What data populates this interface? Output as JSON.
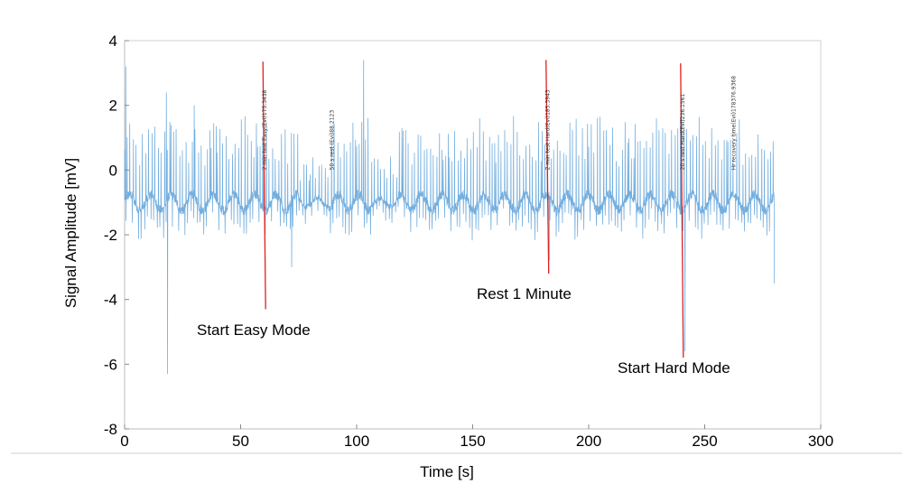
{
  "chart_data": {
    "type": "line",
    "title": "",
    "xlabel": "Time [s]",
    "ylabel": "Signal Amplitude [mV]",
    "xlim": [
      0,
      300
    ],
    "ylim": [
      -8,
      4
    ],
    "xticks": [
      0,
      50,
      100,
      150,
      200,
      250,
      300
    ],
    "yticks": [
      -8,
      -6,
      -4,
      -2,
      0,
      2,
      4
    ],
    "grid": false,
    "series": [
      {
        "name": "",
        "color": "#5aa0d8",
        "description_values": {
          "duration_s": 280,
          "baseline_mV": -1.0,
          "typical_peak_mV": 1.0,
          "min_mV": -6.4,
          "max_mV": 3.4
        },
        "notable_points": [
          {
            "x": 0.5,
            "y": 3.2
          },
          {
            "x": 18,
            "y": 2.4
          },
          {
            "x": 18.5,
            "y": -6.3
          },
          {
            "x": 30,
            "y": 2.0
          },
          {
            "x": 72,
            "y": -3.0
          },
          {
            "x": 103,
            "y": 3.4
          },
          {
            "x": 183,
            "y": -2.8
          },
          {
            "x": 241.5,
            "y": -5.6
          },
          {
            "x": 280,
            "y": -3.5
          }
        ]
      }
    ],
    "event_markers": [
      {
        "x": 60,
        "y_top": 3.35,
        "y_bottom": -4.3,
        "label": "Start Easy Mode",
        "color": "#e0201f"
      },
      {
        "x": 182,
        "y_top": 3.4,
        "y_bottom": -3.2,
        "label": "Rest 1 Minute",
        "color": "#e0201f"
      },
      {
        "x": 240,
        "y_top": 3.3,
        "y_bottom": -5.8,
        "label": "Start Hard Mode",
        "color": "#e0201f"
      }
    ],
    "vertical_text_markers": [
      {
        "x": 60,
        "text": "2 min test Easy(Evi)175.3438"
      },
      {
        "x": 89,
        "text": "50 s rest (Evi)88.2123"
      },
      {
        "x": 182,
        "text": "2 min test Hard(Evi)185.3943"
      },
      {
        "x": 240,
        "text": "20 s rest Hard(Evi)236.1561"
      },
      {
        "x": 262,
        "text": "Hr recovery time(Evi)178376.9368"
      }
    ]
  }
}
